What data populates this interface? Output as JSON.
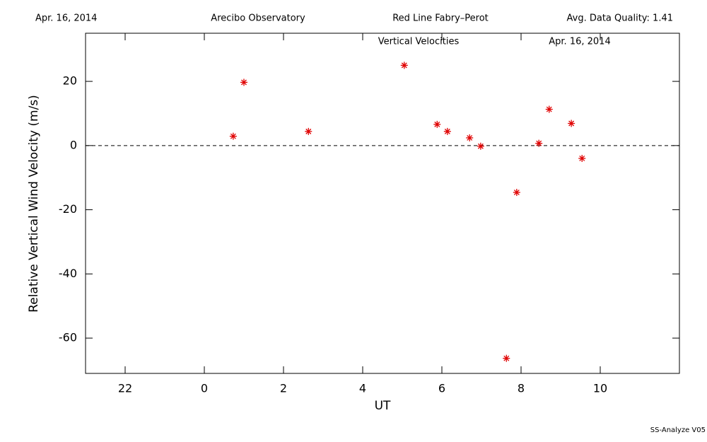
{
  "chart_data": {
    "type": "scatter",
    "header": [
      "Apr. 16, 2014",
      "Arecibo Observatory",
      "Red Line Fabry–Perot",
      "Avg. Data Quality: 1.41"
    ],
    "title": "Vertical Velocities",
    "subtitle": "Apr. 16, 2014",
    "x_label": "UT",
    "y_label": "Relative Vertical Wind Velocity (m/s)",
    "footer": "SS-Analyze V05",
    "x": [
      0.73,
      1.0,
      2.63,
      5.05,
      5.88,
      6.14,
      6.7,
      6.98,
      7.63,
      7.89,
      8.45,
      8.71,
      9.27,
      9.54
    ],
    "values": [
      2.9,
      19.7,
      4.4,
      25.0,
      6.6,
      4.4,
      2.4,
      -0.2,
      -66.3,
      -14.6,
      0.7,
      11.3,
      6.9,
      -4.0
    ],
    "color": "#e00000",
    "xlim": [
      -3,
      12
    ],
    "xticks": [
      {
        "value": -2,
        "label": "22"
      },
      0,
      2,
      4,
      6,
      8,
      10
    ],
    "ylim": [
      -71,
      35
    ],
    "yticks": [
      20,
      0,
      -20,
      -40,
      -60
    ],
    "reference_line": 0
  }
}
